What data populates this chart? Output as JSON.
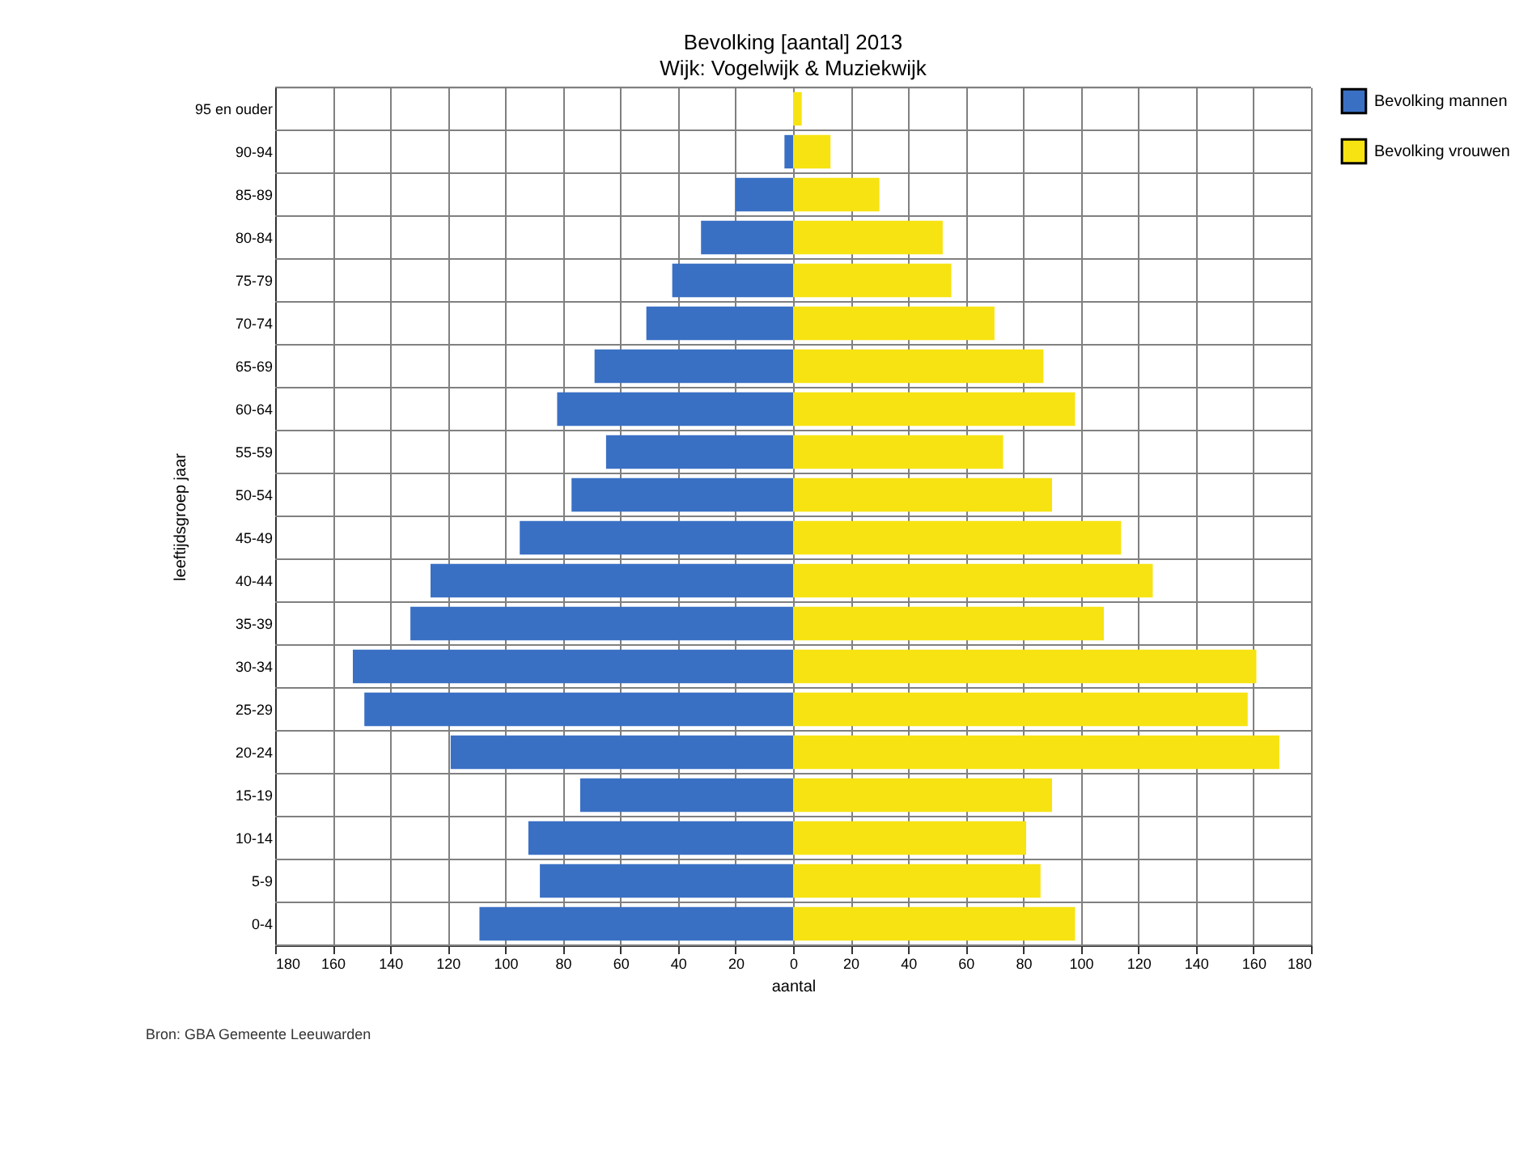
{
  "chart_data": {
    "type": "bar",
    "orientation": "horizontal",
    "stacked": true,
    "title": "Bevolking [aantal] 2013",
    "subtitle": "Wijk: Vogelwijk & Muziekwijk",
    "xlabel": "aantal",
    "ylabel": "leeftijdsgroep jaar",
    "categories": [
      "95 en ouder",
      "90-94",
      "85-89",
      "80-84",
      "75-79",
      "70-74",
      "65-69",
      "60-64",
      "55-59",
      "50-54",
      "45-49",
      "40-44",
      "35-39",
      "30-34",
      "25-29",
      "20-24",
      "15-19",
      "10-14",
      "5-9",
      "0-4"
    ],
    "series": [
      {
        "name": "Bevolking mannen",
        "color": "#3a70c4",
        "values": [
          0,
          -3,
          -20,
          -32,
          -42,
          -51,
          -69,
          -82,
          -65,
          -77,
          -95,
          -126,
          -133,
          -153,
          -149,
          -119,
          -74,
          -92,
          -88,
          -109
        ]
      },
      {
        "name": "Bevolking vrouwen",
        "color": "#f7e312",
        "values": [
          3,
          13,
          30,
          52,
          55,
          70,
          87,
          98,
          73,
          90,
          114,
          125,
          108,
          161,
          158,
          169,
          90,
          81,
          86,
          98
        ]
      }
    ],
    "xlim": [
      -180,
      180
    ],
    "xticks": [
      {
        "value": -180,
        "label": "180"
      },
      {
        "value": -160,
        "label": "160"
      },
      {
        "value": -140,
        "label": "140"
      },
      {
        "value": -120,
        "label": "120"
      },
      {
        "value": -100,
        "label": "100"
      },
      {
        "value": -80,
        "label": "80"
      },
      {
        "value": -60,
        "label": "60"
      },
      {
        "value": -40,
        "label": "40"
      },
      {
        "value": -20,
        "label": "20"
      },
      0,
      20,
      40,
      60,
      80,
      100,
      120,
      140,
      160,
      180
    ],
    "grid": true,
    "legend": "top right",
    "annotations": [
      "Bron: GBA Gemeente Leeuwarden"
    ]
  }
}
